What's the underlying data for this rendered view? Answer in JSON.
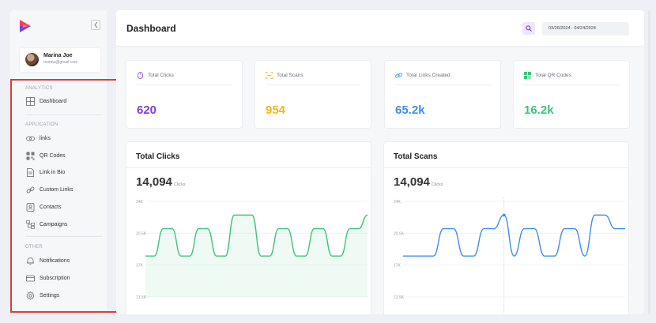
{
  "brand": {
    "logo_colors": [
      "#ff3b5c",
      "#7b3fe4",
      "#ff9a1f"
    ]
  },
  "profile": {
    "name": "Marina Joe",
    "email": "marina@gmail.com"
  },
  "sidebar": {
    "sections": [
      {
        "label": "ANALYTICS",
        "items": [
          {
            "label": "Dashboard",
            "icon": "grid-icon"
          }
        ]
      },
      {
        "label": "APPLICATION",
        "items": [
          {
            "label": "links",
            "icon": "link-icon"
          },
          {
            "label": "QR Codes",
            "icon": "qr-code-icon"
          },
          {
            "label": "Link in Bio",
            "icon": "document-icon"
          },
          {
            "label": "Custom Links",
            "icon": "chain-icon"
          },
          {
            "label": "Contacts",
            "icon": "contact-icon"
          },
          {
            "label": "Campaigns",
            "icon": "campaign-icon"
          }
        ]
      },
      {
        "label": "OTHER",
        "items": [
          {
            "label": "Notifications",
            "icon": "bell-icon"
          },
          {
            "label": "Subscription",
            "icon": "card-icon"
          },
          {
            "label": "Settings",
            "icon": "gear-icon"
          }
        ]
      }
    ]
  },
  "header": {
    "title": "Dashboard",
    "date_range": "03/26/2024 - 04/24/2024"
  },
  "stats": [
    {
      "label": "Total Clicks",
      "value": "620",
      "color": "#7b3fe4",
      "icon": "mouse-icon"
    },
    {
      "label": "Total Scans",
      "value": "954",
      "color": "#f2b51d",
      "icon": "scan-icon"
    },
    {
      "label": "Total Links Created",
      "value": "65.2k",
      "color": "#3b8ef0",
      "icon": "link-icon"
    },
    {
      "label": "Total QR Codes",
      "value": "16.2k",
      "color": "#3cc47c",
      "icon": "qr-code-icon"
    }
  ],
  "charts": [
    {
      "title": "Total Clicks",
      "total": "14,094",
      "unit": "Clicks",
      "color": "#3cc47c"
    },
    {
      "title": "Total Scans",
      "total": "14,094",
      "unit": "Clicks",
      "color": "#3b8ef0"
    }
  ],
  "chart_data": [
    {
      "type": "area",
      "title": "Total Clicks",
      "ylim": [
        13500,
        24000
      ],
      "yticks": [
        "24K",
        "20.5K",
        "17K",
        "13.5K"
      ],
      "series": [
        {
          "name": "Clicks",
          "values": [
            18000,
            18000,
            21000,
            21000,
            18000,
            18000,
            21000,
            21000,
            18000,
            18000,
            22500,
            22500,
            22500,
            18000,
            18000,
            21000,
            21000,
            18000,
            18000,
            21000,
            21000,
            18000,
            18000,
            21000,
            21000,
            22500
          ]
        }
      ]
    },
    {
      "type": "line",
      "title": "Total Scans",
      "ylim": [
        13500,
        24000
      ],
      "yticks": [
        "24K",
        "20.5K",
        "17K",
        "13.5K"
      ],
      "series": [
        {
          "name": "Scans",
          "values": [
            18000,
            18000,
            18000,
            18000,
            21000,
            21000,
            18000,
            18000,
            21000,
            21000,
            22500,
            18000,
            21000,
            21000,
            18000,
            18000,
            21000,
            21000,
            18000,
            22500,
            22500,
            21000,
            21000
          ]
        }
      ]
    }
  ]
}
